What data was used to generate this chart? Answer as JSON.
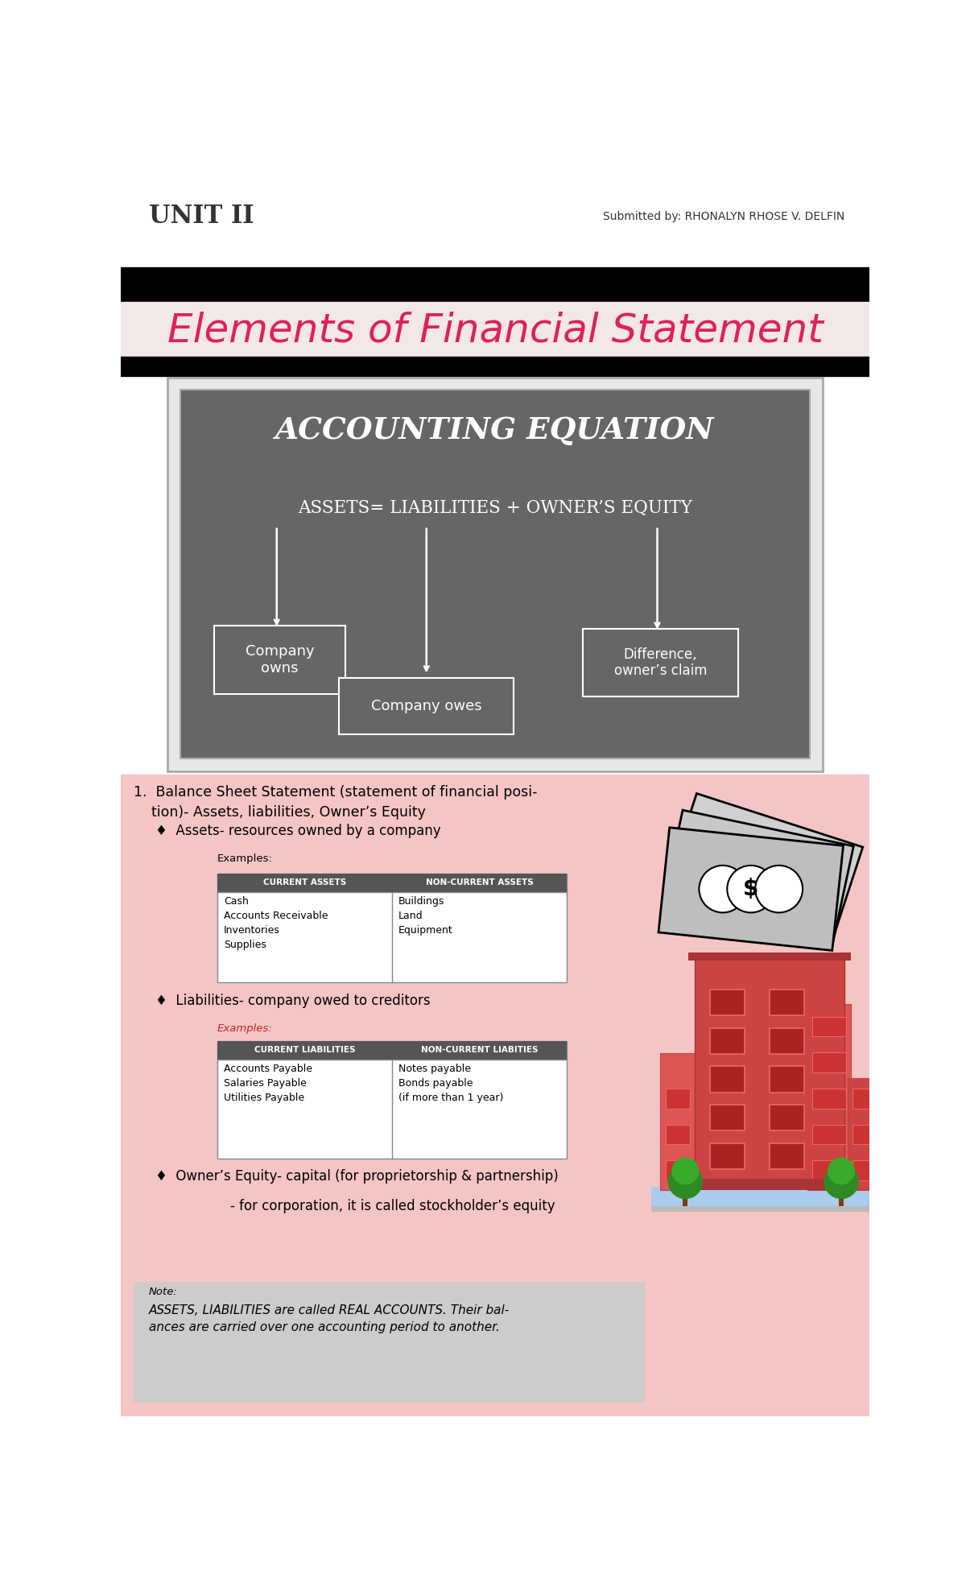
{
  "title_unit": "UNIT II",
  "title_submitted": "Submitted by: RHONALYN RHOSE V. DELFIN",
  "title_script": "Elements of Financial Statement",
  "accounting_title": "ACCOUNTING EQUATION",
  "accounting_eq": "ASSETS= LIABILITIES + OWNER’S EQUITY",
  "box1_text": "Company\nowns",
  "box2_text": "Company owes",
  "box3_text": "Difference,\nowner’s claim",
  "current_assets_header": "CURRENT ASSETS",
  "noncurrent_assets_header": "NON-CURRENT ASSETS",
  "current_assets_items": "Cash\nAccounts Receivable\nInventories\nSupplies",
  "noncurrent_assets_items": "Buildings\nLand\nEquipment",
  "current_liab_header": "CURRENT LIABILITIES",
  "noncurrent_liab_header": "NON-CURRENT LIABITIES",
  "current_liab_items": "Accounts Payable\nSalaries Payable\nUtilities Payable",
  "noncurrent_liab_items": "Notes payable\nBonds payable\n(if more than 1 year)",
  "note_label": "Note:",
  "note_text": "ASSETS, LIABILITIES are called REAL ACCOUNTS. Their bal-\nances are carried over one accounting period to another.",
  "bg_white": "#ffffff",
  "bg_pink": "#f5c5c5",
  "bg_dark": "#666666",
  "table_header_bg": "#555555",
  "note_bg": "#cccccc"
}
